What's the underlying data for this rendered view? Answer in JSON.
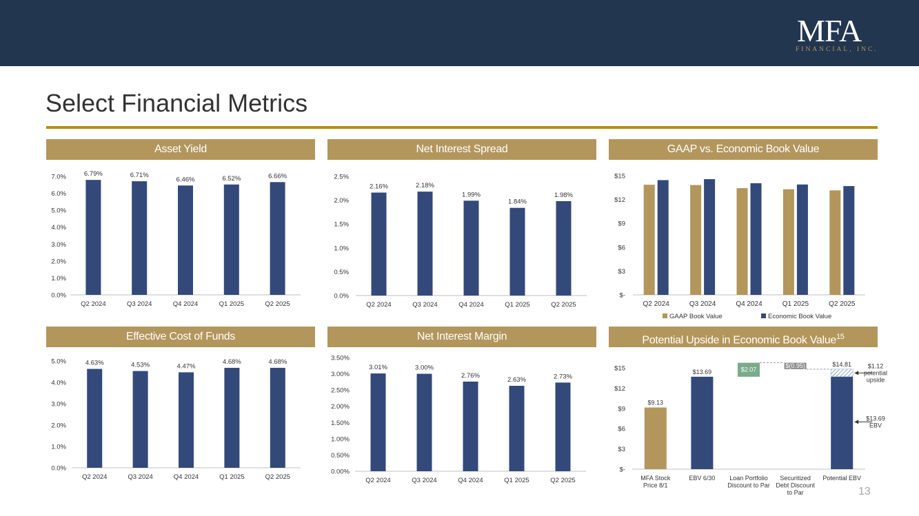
{
  "header": {
    "logo_main": "MFA",
    "logo_sub": "FINANCIAL, INC.",
    "page_title": "Select Financial Metrics"
  },
  "colors": {
    "navy": "#33497a",
    "gold": "#b3965c",
    "green": "#7aab8a",
    "dark": "#233650"
  },
  "panels": {
    "asset_yield": "Asset Yield",
    "net_interest_spread": "Net Interest Spread",
    "gaap_vs_ebv": "GAAP vs. Economic Book Value",
    "cost_of_funds": "Effective Cost of Funds",
    "net_interest_margin": "Net Interest Margin",
    "potential_upside": "Potential Upside in Economic Book Value",
    "potential_upside_sup": "15"
  },
  "page_number": "13",
  "chart_data": [
    {
      "id": "asset_yield",
      "type": "bar",
      "title": "Asset Yield",
      "categories": [
        "Q2 2024",
        "Q3 2024",
        "Q4 2024",
        "Q1 2025",
        "Q2 2025"
      ],
      "values": [
        6.79,
        6.71,
        6.46,
        6.52,
        6.66
      ],
      "data_labels": [
        "6.79%",
        "6.71%",
        "6.46%",
        "6.52%",
        "6.66%"
      ],
      "ylim": [
        0,
        7
      ],
      "yticks": [
        0,
        1,
        2,
        3,
        4,
        5,
        6,
        7
      ],
      "ytick_labels": [
        "0.0%",
        "1.0%",
        "2.0%",
        "3.0%",
        "4.0%",
        "5.0%",
        "6.0%",
        "7.0%"
      ]
    },
    {
      "id": "net_interest_spread",
      "type": "bar",
      "title": "Net Interest Spread",
      "categories": [
        "Q2 2024",
        "Q3 2024",
        "Q4 2024",
        "Q1 2025",
        "Q2 2025"
      ],
      "values": [
        2.16,
        2.18,
        1.99,
        1.84,
        1.98
      ],
      "data_labels": [
        "2.16%",
        "2.18%",
        "1.99%",
        "1.84%",
        "1.98%"
      ],
      "ylim": [
        0,
        2.5
      ],
      "yticks": [
        0,
        0.5,
        1,
        1.5,
        2,
        2.5
      ],
      "ytick_labels": [
        "0.0%",
        "0.5%",
        "1.0%",
        "1.5%",
        "2.0%",
        "2.5%"
      ]
    },
    {
      "id": "gaap_vs_ebv",
      "type": "bar",
      "title": "GAAP vs. Economic Book Value",
      "categories": [
        "Q2 2024",
        "Q3 2024",
        "Q4 2024",
        "Q1 2025",
        "Q2 2025"
      ],
      "series": [
        {
          "name": "GAAP Book Value",
          "values": [
            13.86,
            13.82,
            13.43,
            13.29,
            13.15
          ]
        },
        {
          "name": "Economic Book Value",
          "values": [
            14.44,
            14.56,
            14.05,
            13.89,
            13.69
          ]
        }
      ],
      "ylim": [
        0,
        15
      ],
      "yticks": [
        0,
        3,
        6,
        9,
        12,
        15
      ],
      "ytick_labels": [
        "$-",
        "$3",
        "$6",
        "$9",
        "$12",
        "$15"
      ],
      "legend": "bottom"
    },
    {
      "id": "cost_of_funds",
      "type": "bar",
      "title": "Effective Cost of Funds",
      "categories": [
        "Q2 2024",
        "Q3 2024",
        "Q4 2024",
        "Q1 2025",
        "Q2 2025"
      ],
      "values": [
        4.63,
        4.53,
        4.47,
        4.68,
        4.68
      ],
      "data_labels": [
        "4.63%",
        "4.53%",
        "4.47%",
        "4.68%",
        "4.68%"
      ],
      "ylim": [
        0,
        5
      ],
      "yticks": [
        0,
        1,
        2,
        3,
        4,
        5
      ],
      "ytick_labels": [
        "0.0%",
        "1.0%",
        "2.0%",
        "3.0%",
        "4.0%",
        "5.0%"
      ]
    },
    {
      "id": "net_interest_margin",
      "type": "bar",
      "title": "Net Interest Margin",
      "categories": [
        "Q2 2024",
        "Q3 2024",
        "Q4 2024",
        "Q1 2025",
        "Q2 2025"
      ],
      "values": [
        3.01,
        3.0,
        2.76,
        2.63,
        2.73
      ],
      "data_labels": [
        "3.01%",
        "3.00%",
        "2.76%",
        "2.63%",
        "2.73%"
      ],
      "ylim": [
        0,
        3.5
      ],
      "yticks": [
        0,
        0.5,
        1,
        1.5,
        2,
        2.5,
        3,
        3.5
      ],
      "ytick_labels": [
        "0.00%",
        "0.50%",
        "1.00%",
        "1.50%",
        "2.00%",
        "2.50%",
        "3.00%",
        "3.50%"
      ]
    },
    {
      "id": "potential_upside",
      "type": "bar",
      "subtype": "waterfall",
      "title": "Potential Upside in Economic Book Value",
      "categories": [
        [
          "MFA Stock",
          "Price 8/1"
        ],
        [
          "EBV 6/30"
        ],
        [
          "Loan Portfolio",
          "Discount to Par"
        ],
        [
          "Securitized",
          "Debt Discount",
          "to Par"
        ],
        [
          "Potential EBV"
        ]
      ],
      "bars": [
        {
          "from": 0,
          "to": 9.13,
          "label": "$9.13",
          "color": "gold"
        },
        {
          "from": 0,
          "to": 13.69,
          "label": "$13.69",
          "color": "navy"
        },
        {
          "from": 13.69,
          "to": 15.76,
          "label": "$2.07",
          "color": "green",
          "label_inside": true
        },
        {
          "from": 15.76,
          "to": 14.81,
          "label": "$(0.95)",
          "color": "grey",
          "label_inside": true
        },
        {
          "from": 0,
          "to": 13.69,
          "label": "$14.81",
          "color": "navy",
          "upside_to": 14.81
        }
      ],
      "annotations": [
        {
          "lines": [
            "$1.12",
            "potential",
            "upside"
          ],
          "value": 14.25
        },
        {
          "lines": [
            "$13.69",
            "EBV"
          ],
          "value": 7.0
        }
      ],
      "ylim": [
        0,
        15
      ],
      "yticks": [
        0,
        3,
        6,
        9,
        12,
        15
      ],
      "ytick_labels": [
        "$-",
        "$3",
        "$6",
        "$9",
        "$12",
        "$15"
      ]
    }
  ]
}
